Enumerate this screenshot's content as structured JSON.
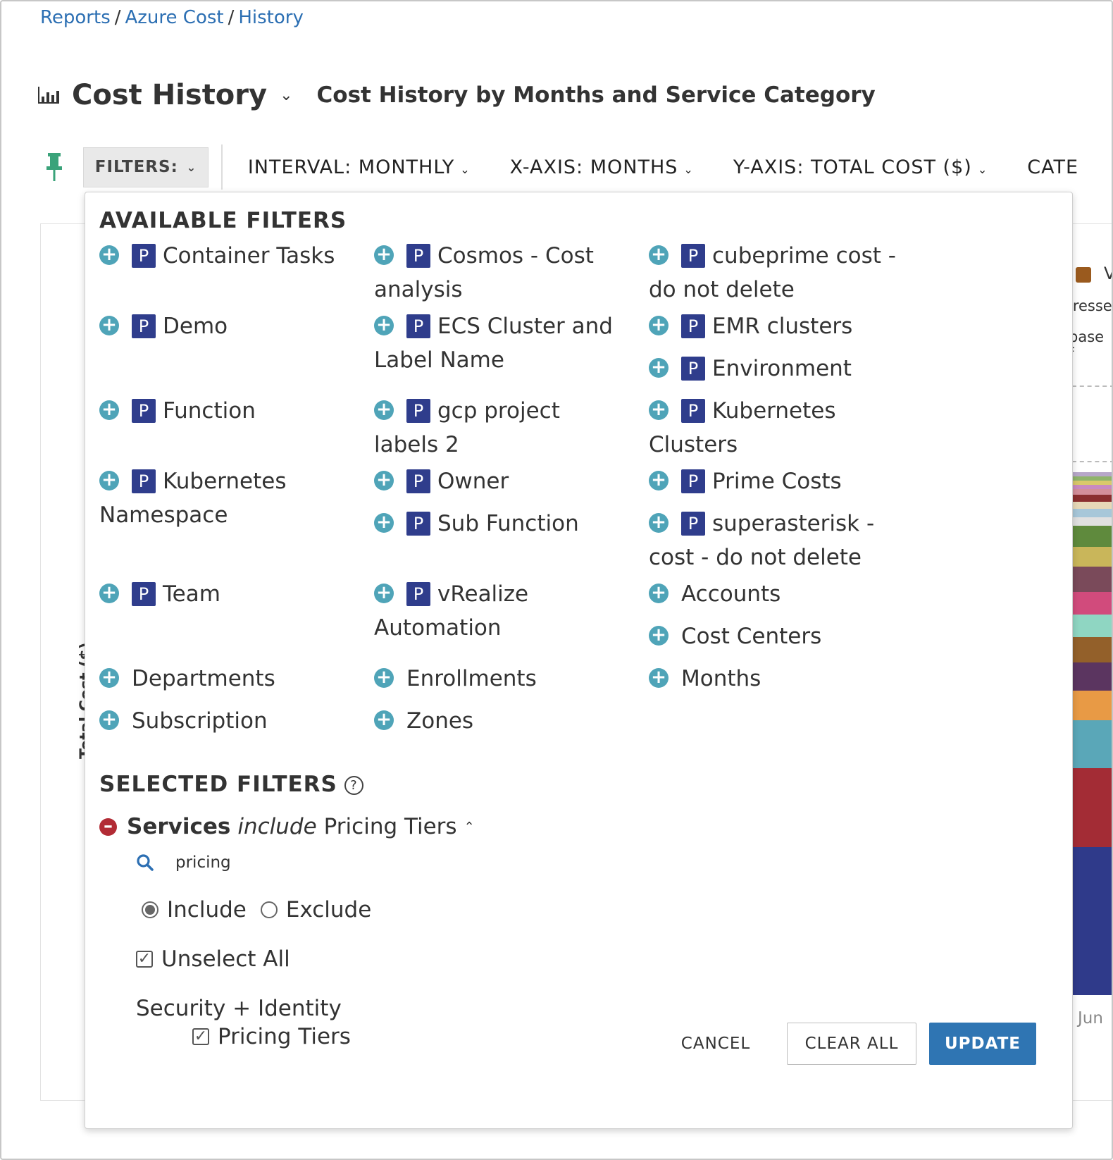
{
  "breadcrumb": {
    "items": [
      "Reports",
      "Azure Cost",
      "History"
    ],
    "separator": "/"
  },
  "header": {
    "title": "Cost History",
    "subtitle": "Cost History by Months and Service Category",
    "title_icon": "bar-chart-icon"
  },
  "toolbar": {
    "filters_label": "FILTERS:",
    "interval": "INTERVAL:  MONTHLY",
    "x_axis": "X-AXIS:  MONTHS",
    "y_axis": "Y-AXIS:  TOTAL COST ($)",
    "category": "CATE"
  },
  "background_chart": {
    "legend_fragment": "V",
    "text_fragment_1": "lresse",
    "text_fragment_2": "base f",
    "x_tick_fragment": "Jun",
    "y_axis_fragment": "Total Cost ($)"
  },
  "available_filters": {
    "heading": "AVAILABLE FILTERS",
    "badge": "P",
    "add_icon": "plus-circle-icon",
    "items": [
      "Container Tasks",
      "Cosmos - Cost analysis",
      "cubeprime cost - do not delete",
      "Demo",
      "ECS Cluster and Label Name",
      "EMR clusters",
      "Environment",
      "Function",
      "gcp project labels 2",
      "Kubernetes Clusters",
      "Kubernetes Namespace",
      "Owner",
      "Prime Costs",
      "Sub Function",
      "superasterisk - cost - do not delete",
      "Team",
      "vRealize Automation",
      "Accounts",
      "Cost Centers",
      "Departments",
      "Enrollments",
      "Months",
      "Subscription",
      "Zones"
    ]
  },
  "selected_filters": {
    "heading": "SELECTED FILTERS",
    "help_glyph": "?",
    "filter": {
      "field": "Services",
      "operator": "include",
      "value": "Pricing Tiers"
    },
    "search_value": "pricing",
    "include_label": "Include",
    "exclude_label": "Exclude",
    "mode": "include",
    "unselect_all_label": "Unselect All",
    "group_label": "Security + Identity",
    "group_item_label": "Pricing Tiers",
    "group_item_checked": true
  },
  "actions": {
    "cancel": "CANCEL",
    "clear_all": "CLEAR ALL",
    "update": "UPDATE"
  },
  "colors": {
    "link": "#2c6fb3",
    "badge": "#2f3d8c",
    "add": "#4fa4b8",
    "remove": "#b22b35",
    "primary": "#2f75b3",
    "pin": "#3aa37a"
  }
}
